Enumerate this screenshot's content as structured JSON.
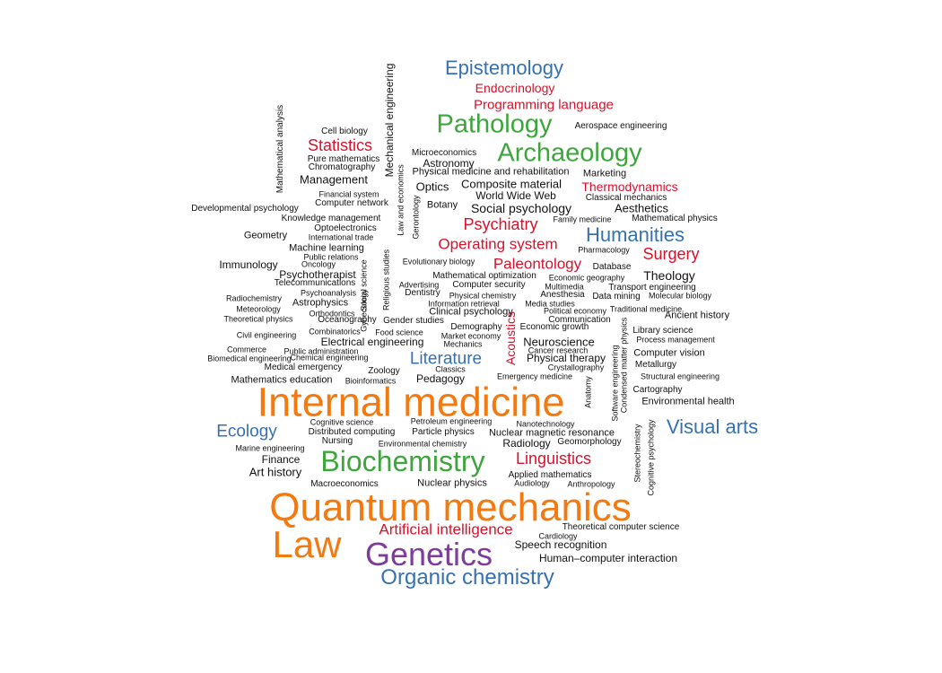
{
  "colors": {
    "black": "#111111",
    "orange": "#f47a10",
    "green": "#3ea63d",
    "red": "#d9122b",
    "blue": "#3571b3",
    "purple": "#7e3d9a"
  },
  "words": [
    {
      "text": "Internal medicine",
      "c": "orange"
    },
    {
      "text": "Quantum mechanics",
      "c": "orange"
    },
    {
      "text": "Law",
      "c": "orange"
    },
    {
      "text": "Genetics",
      "c": "purple"
    },
    {
      "text": "Biochemistry",
      "c": "green"
    },
    {
      "text": "Pathology",
      "c": "green"
    },
    {
      "text": "Archaeology",
      "c": "green"
    },
    {
      "text": "Organic chemistry",
      "c": "blue"
    },
    {
      "text": "Epistemology",
      "c": "blue"
    },
    {
      "text": "Humanities",
      "c": "blue"
    },
    {
      "text": "Visual arts",
      "c": "blue"
    },
    {
      "text": "Ecology",
      "c": "blue"
    },
    {
      "text": "Literature",
      "c": "blue"
    },
    {
      "text": "Artificial intelligence",
      "c": "red"
    },
    {
      "text": "Linguistics",
      "c": "red"
    },
    {
      "text": "Psychiatry",
      "c": "red"
    },
    {
      "text": "Operating system",
      "c": "red"
    },
    {
      "text": "Statistics",
      "c": "red"
    },
    {
      "text": "Surgery",
      "c": "red"
    },
    {
      "text": "Paleontology",
      "c": "red"
    },
    {
      "text": "Programming language",
      "c": "red"
    },
    {
      "text": "Endocrinology",
      "c": "red"
    },
    {
      "text": "Thermodynamics",
      "c": "red"
    },
    {
      "text": "Acoustics",
      "c": "red"
    },
    {
      "text": "Mechanical engineering",
      "c": "black"
    },
    {
      "text": "Mathematical analysis",
      "c": "black"
    },
    {
      "text": "Aerospace engineering",
      "c": "black"
    },
    {
      "text": "Cell biology",
      "c": "black"
    },
    {
      "text": "Microeconomics",
      "c": "black"
    },
    {
      "text": "Astronomy",
      "c": "black"
    },
    {
      "text": "Pure mathematics",
      "c": "black"
    },
    {
      "text": "Chromatography",
      "c": "black"
    },
    {
      "text": "Physical medicine and rehabilitation",
      "c": "black"
    },
    {
      "text": "Marketing",
      "c": "black"
    },
    {
      "text": "Management",
      "c": "black"
    },
    {
      "text": "Composite material",
      "c": "black"
    },
    {
      "text": "Optics",
      "c": "black"
    },
    {
      "text": "Financial system",
      "c": "black"
    },
    {
      "text": "World Wide Web",
      "c": "black"
    },
    {
      "text": "Classical mechanics",
      "c": "black"
    },
    {
      "text": "Computer network",
      "c": "black"
    },
    {
      "text": "Botany",
      "c": "black"
    },
    {
      "text": "Social psychology",
      "c": "black"
    },
    {
      "text": "Aesthetics",
      "c": "black"
    },
    {
      "text": "Developmental psychology",
      "c": "black"
    },
    {
      "text": "Knowledge management",
      "c": "black"
    },
    {
      "text": "Family medicine",
      "c": "black"
    },
    {
      "text": "Mathematical physics",
      "c": "black"
    },
    {
      "text": "Optoelectronics",
      "c": "black"
    },
    {
      "text": "Geometry",
      "c": "black"
    },
    {
      "text": "International trade",
      "c": "black"
    },
    {
      "text": "Law and economics",
      "c": "black"
    },
    {
      "text": "Gerontology",
      "c": "black"
    },
    {
      "text": "Machine learning",
      "c": "black"
    },
    {
      "text": "Pharmacology",
      "c": "black"
    },
    {
      "text": "Public relations",
      "c": "black"
    },
    {
      "text": "Immunology",
      "c": "black"
    },
    {
      "text": "Oncology",
      "c": "black"
    },
    {
      "text": "Evolutionary biology",
      "c": "black"
    },
    {
      "text": "Database",
      "c": "black"
    },
    {
      "text": "Psychotherapist",
      "c": "black"
    },
    {
      "text": "Mathematical optimization",
      "c": "black"
    },
    {
      "text": "Economic geography",
      "c": "black"
    },
    {
      "text": "Theology",
      "c": "black"
    },
    {
      "text": "Telecommunications",
      "c": "black"
    },
    {
      "text": "Advertising",
      "c": "black"
    },
    {
      "text": "Computer security",
      "c": "black"
    },
    {
      "text": "Multimedia",
      "c": "black"
    },
    {
      "text": "Transport engineering",
      "c": "black"
    },
    {
      "text": "Psychoanalysis",
      "c": "black"
    },
    {
      "text": "Dentistry",
      "c": "black"
    },
    {
      "text": "Physical chemistry",
      "c": "black"
    },
    {
      "text": "Anesthesia",
      "c": "black"
    },
    {
      "text": "Data mining",
      "c": "black"
    },
    {
      "text": "Molecular biology",
      "c": "black"
    },
    {
      "text": "Radiochemistry",
      "c": "black"
    },
    {
      "text": "Astrophysics",
      "c": "black"
    },
    {
      "text": "Social science",
      "c": "black"
    },
    {
      "text": "Religious studies",
      "c": "black"
    },
    {
      "text": "Information retrieval",
      "c": "black"
    },
    {
      "text": "Media studies",
      "c": "black"
    },
    {
      "text": "Traditional medicine",
      "c": "black"
    },
    {
      "text": "Meteorology",
      "c": "black"
    },
    {
      "text": "Gynecology",
      "c": "black"
    },
    {
      "text": "Clinical psychology",
      "c": "black"
    },
    {
      "text": "Political economy",
      "c": "black"
    },
    {
      "text": "Orthodontics",
      "c": "black"
    },
    {
      "text": "Ancient history",
      "c": "black"
    },
    {
      "text": "Theoretical physics",
      "c": "black"
    },
    {
      "text": "Oceanography",
      "c": "black"
    },
    {
      "text": "Gender studies",
      "c": "black"
    },
    {
      "text": "Communication",
      "c": "black"
    },
    {
      "text": "Demography",
      "c": "black"
    },
    {
      "text": "Economic growth",
      "c": "black"
    },
    {
      "text": "Civil engineering",
      "c": "black"
    },
    {
      "text": "Combinatorics",
      "c": "black"
    },
    {
      "text": "Food science",
      "c": "black"
    },
    {
      "text": "Market economy",
      "c": "black"
    },
    {
      "text": "Library science",
      "c": "black"
    },
    {
      "text": "Electrical engineering",
      "c": "black"
    },
    {
      "text": "Neuroscience",
      "c": "black"
    },
    {
      "text": "Process management",
      "c": "black"
    },
    {
      "text": "Mechanics",
      "c": "black"
    },
    {
      "text": "Commerce",
      "c": "black"
    },
    {
      "text": "Public administration",
      "c": "black"
    },
    {
      "text": "Cancer research",
      "c": "black"
    },
    {
      "text": "Computer vision",
      "c": "black"
    },
    {
      "text": "Biomedical engineering",
      "c": "black"
    },
    {
      "text": "Chemical engineering",
      "c": "black"
    },
    {
      "text": "Physical therapy",
      "c": "black"
    },
    {
      "text": "Metallurgy",
      "c": "black"
    },
    {
      "text": "Medical emergency",
      "c": "black"
    },
    {
      "text": "Classics",
      "c": "black"
    },
    {
      "text": "Crystallography",
      "c": "black"
    },
    {
      "text": "Zoology",
      "c": "black"
    },
    {
      "text": "Structural engineering",
      "c": "black"
    },
    {
      "text": "Mathematics education",
      "c": "black"
    },
    {
      "text": "Bioinformatics",
      "c": "black"
    },
    {
      "text": "Pedagogy",
      "c": "black"
    },
    {
      "text": "Emergency medicine",
      "c": "black"
    },
    {
      "text": "Cartography",
      "c": "black"
    },
    {
      "text": "Anatomy",
      "c": "black"
    },
    {
      "text": "Software engineering",
      "c": "black"
    },
    {
      "text": "Condensed matter physics",
      "c": "black"
    },
    {
      "text": "Environmental health",
      "c": "black"
    },
    {
      "text": "Stereochemistry",
      "c": "black"
    },
    {
      "text": "Cognitive psychology",
      "c": "black"
    },
    {
      "text": "Cognitive science",
      "c": "black"
    },
    {
      "text": "Petroleum engineering",
      "c": "black"
    },
    {
      "text": "Nanotechnology",
      "c": "black"
    },
    {
      "text": "Distributed computing",
      "c": "black"
    },
    {
      "text": "Particle physics",
      "c": "black"
    },
    {
      "text": "Nuclear magnetic resonance",
      "c": "black"
    },
    {
      "text": "Nursing",
      "c": "black"
    },
    {
      "text": "Environmental chemistry",
      "c": "black"
    },
    {
      "text": "Radiology",
      "c": "black"
    },
    {
      "text": "Geomorphology",
      "c": "black"
    },
    {
      "text": "Marine engineering",
      "c": "black"
    },
    {
      "text": "Finance",
      "c": "black"
    },
    {
      "text": "Art history",
      "c": "black"
    },
    {
      "text": "Applied mathematics",
      "c": "black"
    },
    {
      "text": "Macroeconomics",
      "c": "black"
    },
    {
      "text": "Nuclear physics",
      "c": "black"
    },
    {
      "text": "Audiology",
      "c": "black"
    },
    {
      "text": "Anthropology",
      "c": "black"
    },
    {
      "text": "Theoretical computer science",
      "c": "black"
    },
    {
      "text": "Cardiology",
      "c": "black"
    },
    {
      "text": "Speech recognition",
      "c": "black"
    },
    {
      "text": "Human–computer interaction",
      "c": "black"
    }
  ]
}
